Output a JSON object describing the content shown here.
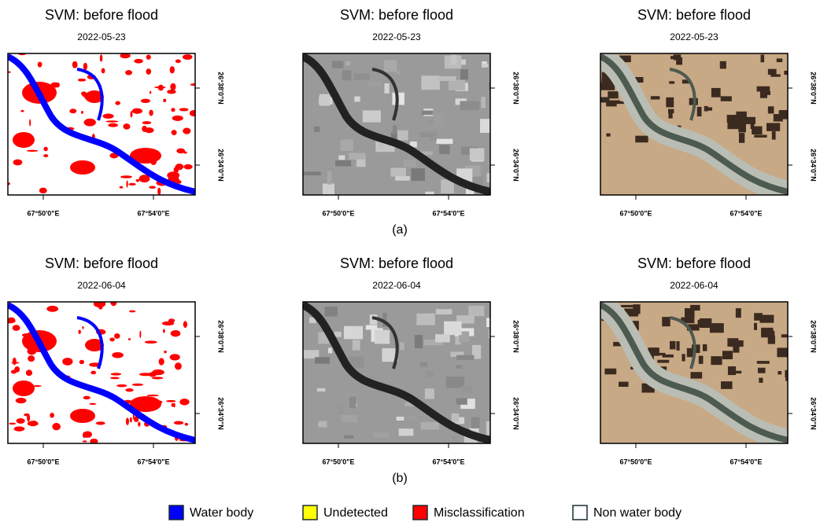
{
  "figure": {
    "rows": [
      {
        "caption": "(a)",
        "panels": [
          {
            "title": "SVM: before flood",
            "date": "2022-05-23",
            "xticks": [
              "67°50'0\"E",
              "67°54'0\"E"
            ],
            "yticks": [
              "26°38'0\"N",
              "26°34'0\"N"
            ]
          },
          {
            "title": "SVM: before flood",
            "date": "2022-05-23",
            "xticks": [
              "67°50'0\"E",
              "67°54'0\"E"
            ],
            "yticks": [
              "26°38'0\"N",
              "26°34'0\"N"
            ]
          },
          {
            "title": "SVM: before flood",
            "date": "2022-05-23",
            "xticks": [
              "67°50'0\"E",
              "67°54'0\"E"
            ],
            "yticks": [
              "26°38'0\"N",
              "26°34'0\"N"
            ]
          }
        ]
      },
      {
        "caption": "(b)",
        "panels": [
          {
            "title": "SVM: before flood",
            "date": "2022-06-04",
            "xticks": [
              "67°50'0\"E",
              "67°54'0\"E"
            ],
            "yticks": [
              "26°38'0\"N",
              "26°34'0\"N"
            ]
          },
          {
            "title": "SVM: before flood",
            "date": "2022-06-04",
            "xticks": [
              "67°50'0\"E",
              "67°54'0\"E"
            ],
            "yticks": [
              "26°38'0\"N",
              "26°34'0\"N"
            ]
          },
          {
            "title": "SVM: before flood",
            "date": "2022-06-04",
            "xticks": [
              "67°50'0\"E",
              "67°54'0\"E"
            ],
            "yticks": [
              "26°38'0\"N",
              "26°34'0\"N"
            ]
          }
        ]
      }
    ],
    "legend": [
      {
        "label": "Water body",
        "color": "#0000ff"
      },
      {
        "label": "Undetected",
        "color": "#ffff00"
      },
      {
        "label": "Misclassification",
        "color": "#ff0000"
      },
      {
        "label": "Non water body",
        "color": "#ffffff"
      }
    ]
  }
}
